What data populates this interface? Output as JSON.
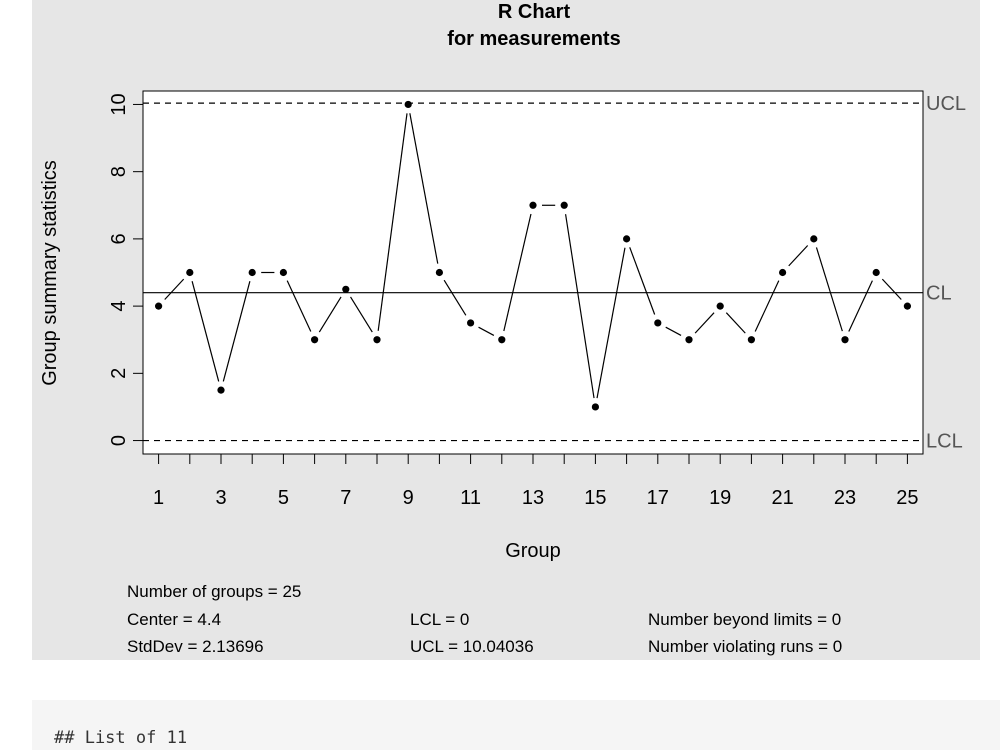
{
  "chart_data": {
    "type": "line",
    "title": "R Chart",
    "subtitle": "for measurements",
    "xlabel": "Group",
    "ylabel": "Group summary statistics",
    "x": [
      1,
      2,
      3,
      4,
      5,
      6,
      7,
      8,
      9,
      10,
      11,
      12,
      13,
      14,
      15,
      16,
      17,
      18,
      19,
      20,
      21,
      22,
      23,
      24,
      25
    ],
    "values": [
      4,
      5,
      1.5,
      5,
      5,
      3,
      4.5,
      3,
      10,
      5,
      3.5,
      3,
      7,
      7,
      1,
      6,
      3.5,
      3,
      4,
      3,
      5,
      6,
      3,
      5,
      4
    ],
    "xlim": [
      0.5,
      25.5
    ],
    "ylim": [
      -0.4,
      10.4
    ],
    "x_ticks": [
      1,
      2,
      3,
      4,
      5,
      6,
      7,
      8,
      9,
      10,
      11,
      12,
      13,
      14,
      15,
      16,
      17,
      18,
      19,
      20,
      21,
      22,
      23,
      24,
      25
    ],
    "x_tick_labels": [
      "1",
      "3",
      "5",
      "7",
      "9",
      "11",
      "13",
      "15",
      "17",
      "19",
      "21",
      "23",
      "25"
    ],
    "y_ticks": [
      0,
      2,
      4,
      6,
      8,
      10
    ],
    "y_tick_labels": [
      "0",
      "2",
      "4",
      "6",
      "8",
      "10"
    ],
    "center": 4.4,
    "lcl": 0,
    "ucl": 10.04036,
    "limit_labels": [
      "UCL",
      "CL",
      "LCL"
    ],
    "grid": false
  },
  "stats": {
    "groups": "Number of groups = 25",
    "center": "Center = 4.4",
    "stddev": "StdDev = 2.13696",
    "lcl": "LCL = 0",
    "ucl": "UCL = 10.04036",
    "beyond": "Number beyond limits = 0",
    "violating": "Number violating runs = 0"
  },
  "output": {
    "text": "## List of 11"
  }
}
